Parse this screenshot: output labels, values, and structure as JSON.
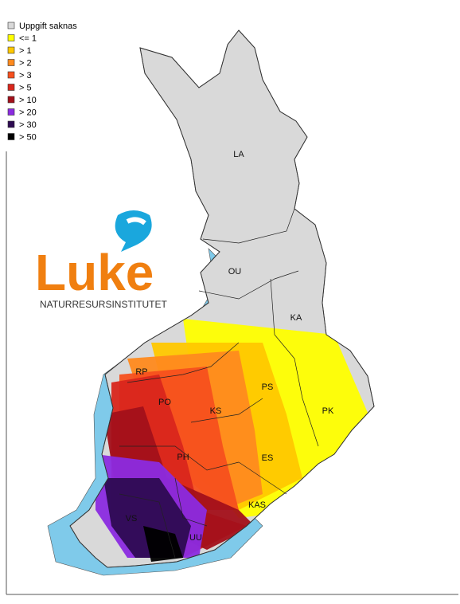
{
  "legend": [
    {
      "label": "Uppgift saknas",
      "color": "#d9d9d9"
    },
    {
      "label": "<= 1",
      "color": "#ffff00"
    },
    {
      "label": "> 1",
      "color": "#ffc800"
    },
    {
      "label": "> 2",
      "color": "#ff8a1e"
    },
    {
      "label": "> 3",
      "color": "#f7501e"
    },
    {
      "label": "> 5",
      "color": "#d9261c"
    },
    {
      "label": "> 10",
      "color": "#a3101a"
    },
    {
      "label": "> 20",
      "color": "#8b2be0"
    },
    {
      "label": "> 30",
      "color": "#2e0b52"
    },
    {
      "label": "> 50",
      "color": "#000000"
    }
  ],
  "logo": {
    "name": "Luke",
    "subtitle": "NATURRESURSINSTITUTET"
  },
  "regions": [
    "LA",
    "OU",
    "KA",
    "RP",
    "PO",
    "KS",
    "PS",
    "PK",
    "PH",
    "ES",
    "KAS",
    "VS",
    "UU"
  ]
}
